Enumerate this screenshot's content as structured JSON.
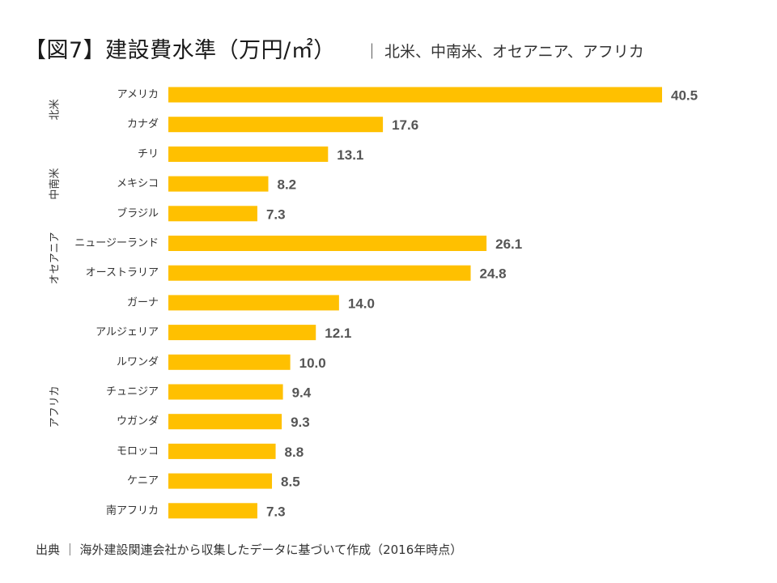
{
  "title": "【図7】建設費水準（万円/㎡）",
  "subtitle": "｜ 北米、中南米、オセアニア、アフリカ",
  "source": "出典 ｜ 海外建設関連会社から収集したデータに基づいて作成（2016年時点）",
  "colors": {
    "bar": "#FFC000",
    "value_text": "#555555"
  },
  "chart_data": {
    "type": "bar",
    "orientation": "horizontal",
    "title": "【図7】建設費水準（万円/㎡）",
    "subtitle": "｜ 北米、中南米、オセアニア、アフリカ",
    "categories": [
      "アメリカ",
      "カナダ",
      "チリ",
      "メキシコ",
      "ブラジル",
      "ニュージーランド",
      "オーストラリア",
      "ガーナ",
      "アルジェリア",
      "ルワンダ",
      "チュニジア",
      "ウガンダ",
      "モロッコ",
      "ケニア",
      "南アフリカ"
    ],
    "values": [
      40.5,
      17.6,
      13.1,
      8.2,
      7.3,
      26.1,
      24.8,
      14.0,
      12.1,
      10.0,
      9.4,
      9.3,
      8.8,
      8.5,
      7.3
    ],
    "value_labels": [
      "40.5",
      "17.6",
      "13.1",
      "8.2",
      "7.3",
      "26.1",
      "24.8",
      "14.0",
      "12.1",
      "10.0",
      "9.4",
      "9.3",
      "8.8",
      "8.5",
      "7.3"
    ],
    "groups": [
      {
        "name": "北米",
        "categories": [
          "アメリカ",
          "カナダ"
        ]
      },
      {
        "name": "中南米",
        "categories": [
          "チリ",
          "メキシコ",
          "ブラジル"
        ]
      },
      {
        "name": "オセアニア",
        "categories": [
          "ニュージーランド",
          "オーストラリア"
        ]
      },
      {
        "name": "アフリカ",
        "categories": [
          "ガーナ",
          "アルジェリア",
          "ルワンダ",
          "チュニジア",
          "ウガンダ",
          "モロッコ",
          "ケニア",
          "南アフリカ"
        ]
      }
    ],
    "xlim": [
      0,
      40.5
    ],
    "grid": false,
    "legend": "none",
    "bar_color": "#FFC000"
  }
}
